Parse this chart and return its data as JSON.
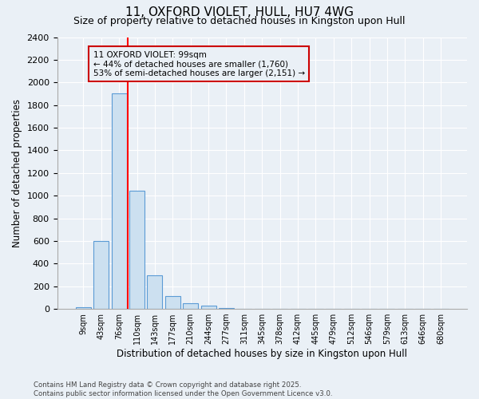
{
  "title": "11, OXFORD VIOLET, HULL, HU7 4WG",
  "subtitle": "Size of property relative to detached houses in Kingston upon Hull",
  "xlabel": "Distribution of detached houses by size in Kingston upon Hull",
  "ylabel": "Number of detached properties",
  "footer": "Contains HM Land Registry data © Crown copyright and database right 2025.\nContains public sector information licensed under the Open Government Licence v3.0.",
  "categories": [
    "9sqm",
    "43sqm",
    "76sqm",
    "110sqm",
    "143sqm",
    "177sqm",
    "210sqm",
    "244sqm",
    "277sqm",
    "311sqm",
    "345sqm",
    "378sqm",
    "412sqm",
    "445sqm",
    "479sqm",
    "512sqm",
    "546sqm",
    "579sqm",
    "613sqm",
    "646sqm",
    "680sqm"
  ],
  "values": [
    15,
    600,
    1900,
    1040,
    295,
    115,
    47,
    28,
    10,
    0,
    0,
    0,
    0,
    0,
    0,
    0,
    0,
    0,
    0,
    0,
    0
  ],
  "bar_color": "#cce0f0",
  "bar_edge_color": "#5b9bd5",
  "red_line_x": 2.5,
  "annotation_line1": "11 OXFORD VIOLET: 99sqm",
  "annotation_line2": "← 44% of detached houses are smaller (1,760)",
  "annotation_line3": "53% of semi-detached houses are larger (2,151) →",
  "annotation_box_color": "#cc0000",
  "ylim": [
    0,
    2400
  ],
  "yticks": [
    0,
    200,
    400,
    600,
    800,
    1000,
    1200,
    1400,
    1600,
    1800,
    2000,
    2200,
    2400
  ],
  "bg_color": "#eaf0f6",
  "grid_color": "#ffffff",
  "title_fontsize": 11,
  "subtitle_fontsize": 9,
  "xlabel_fontsize": 8.5,
  "ylabel_fontsize": 8.5
}
